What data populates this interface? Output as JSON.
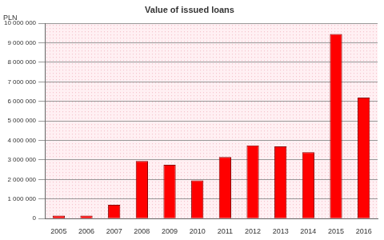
{
  "chart_data": {
    "type": "bar",
    "title": "Value of issued loans",
    "y_label": "PLN",
    "categories": [
      "2005",
      "2006",
      "2007",
      "2008",
      "2009",
      "2010",
      "2011",
      "2012",
      "2013",
      "2014",
      "2015",
      "2016"
    ],
    "values": [
      150000,
      150000,
      700000,
      2950000,
      2750000,
      1950000,
      3150000,
      3750000,
      3700000,
      3400000,
      9450000,
      6200000
    ],
    "color": "#ff0000",
    "ylim": [
      0,
      10000000
    ],
    "yticks": [
      0,
      {
        "value": 1000000,
        "label": "1 000 000"
      },
      {
        "value": 2000000,
        "label": "2 000 000"
      },
      {
        "value": 3000000,
        "label": "3 000 000"
      },
      {
        "value": 4000000,
        "label": "4 000 000"
      },
      {
        "value": 5000000,
        "label": "5 000 000"
      },
      {
        "value": 6000000,
        "label": "6 000 000"
      },
      {
        "value": 7000000,
        "label": "7 000 000"
      },
      {
        "value": 8000000,
        "label": "8 000 000"
      },
      {
        "value": 9000000,
        "label": "9 000 000"
      },
      {
        "value": 10000000,
        "label": "10 000 000"
      }
    ],
    "grid": true
  }
}
